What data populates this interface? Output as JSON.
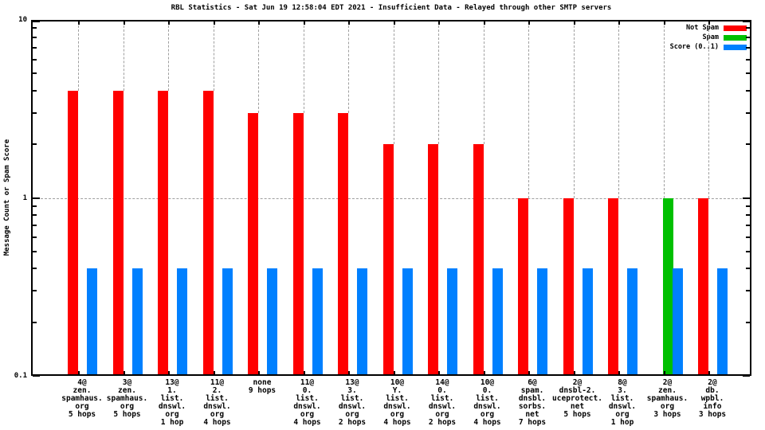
{
  "chart_data": {
    "type": "bar",
    "title": "RBL Statistics - Sat Jun 19 12:58:04 EDT 2021 - Insufficient Data - Relayed through other SMTP servers",
    "ylabel": "Message Count or Spam Score",
    "yscale": "log",
    "ylim": [
      0.1,
      10
    ],
    "grid": {
      "horizontal_at": 1,
      "vertical": "at each group, behind bars",
      "style": "dashed gray"
    },
    "legend_position": "top-right inside plot",
    "yticks_major": [
      {
        "value": 10,
        "label": "10"
      },
      {
        "value": 1,
        "label": "1"
      },
      {
        "value": 0.1,
        "label": "0.1"
      }
    ],
    "yticks_minor": [
      0.2,
      0.3,
      0.4,
      0.5,
      0.6,
      0.7,
      0.8,
      0.9,
      2,
      3,
      4,
      5,
      6,
      7,
      8,
      9
    ],
    "legend": [
      {
        "label": "Not Spam",
        "color": "#ff0000"
      },
      {
        "label": "Spam",
        "color": "#00c000"
      },
      {
        "label": "Score (0..1)",
        "color": "#0080ff"
      }
    ],
    "colors": {
      "not_spam": "#ff0000",
      "spam": "#00c000",
      "score": "#0080ff",
      "grid": "#9f9f9f",
      "axis": "#000000"
    },
    "groups": [
      {
        "label_lines": [
          "4@",
          "zen.",
          "spamhaus.",
          "org",
          "5 hops"
        ],
        "not_spam": 4,
        "spam": 0,
        "score": 0.4
      },
      {
        "label_lines": [
          "3@",
          "zen.",
          "spamhaus.",
          "org",
          "5 hops"
        ],
        "not_spam": 4,
        "spam": 0,
        "score": 0.4
      },
      {
        "label_lines": [
          "13@",
          "1.",
          "list.",
          "dnswl.",
          "org",
          "1 hop"
        ],
        "not_spam": 4,
        "spam": 0,
        "score": 0.4
      },
      {
        "label_lines": [
          "11@",
          "2.",
          "list.",
          "dnswl.",
          "org",
          "4 hops"
        ],
        "not_spam": 4,
        "spam": 0,
        "score": 0.4
      },
      {
        "label_lines": [
          "none",
          "9 hops"
        ],
        "not_spam": 3,
        "spam": 0,
        "score": 0.4
      },
      {
        "label_lines": [
          "11@",
          "0.",
          "list.",
          "dnswl.",
          "org",
          "4 hops"
        ],
        "not_spam": 3,
        "spam": 0,
        "score": 0.4
      },
      {
        "label_lines": [
          "13@",
          "3.",
          "list.",
          "dnswl.",
          "org",
          "2 hops"
        ],
        "not_spam": 3,
        "spam": 0,
        "score": 0.4
      },
      {
        "label_lines": [
          "10@",
          "Y.",
          "list.",
          "dnswl.",
          "org",
          "4 hops"
        ],
        "not_spam": 2,
        "spam": 0,
        "score": 0.4
      },
      {
        "label_lines": [
          "14@",
          "0.",
          "list.",
          "dnswl.",
          "org",
          "2 hops"
        ],
        "not_spam": 2,
        "spam": 0,
        "score": 0.4
      },
      {
        "label_lines": [
          "10@",
          "0.",
          "list.",
          "dnswl.",
          "org",
          "4 hops"
        ],
        "not_spam": 2,
        "spam": 0,
        "score": 0.4
      },
      {
        "label_lines": [
          "6@",
          "spam.",
          "dnsbl.",
          "sorbs.",
          "net",
          "7 hops"
        ],
        "not_spam": 1,
        "spam": 0,
        "score": 0.4
      },
      {
        "label_lines": [
          "2@",
          "dnsbl-2.",
          "uceprotect.",
          "net",
          "5 hops"
        ],
        "not_spam": 1,
        "spam": 0,
        "score": 0.4
      },
      {
        "label_lines": [
          "8@",
          "3.",
          "list.",
          "dnswl.",
          "org",
          "1 hop"
        ],
        "not_spam": 1,
        "spam": 0,
        "score": 0.4
      },
      {
        "label_lines": [
          "2@",
          "zen.",
          "spamhaus.",
          "org",
          "3 hops"
        ],
        "not_spam": 0,
        "spam": 1,
        "score": 0.4
      },
      {
        "label_lines": [
          "2@",
          "db.",
          "wpbl.",
          "info",
          "3 hops"
        ],
        "not_spam": 1,
        "spam": 0,
        "score": 0.4
      }
    ]
  }
}
